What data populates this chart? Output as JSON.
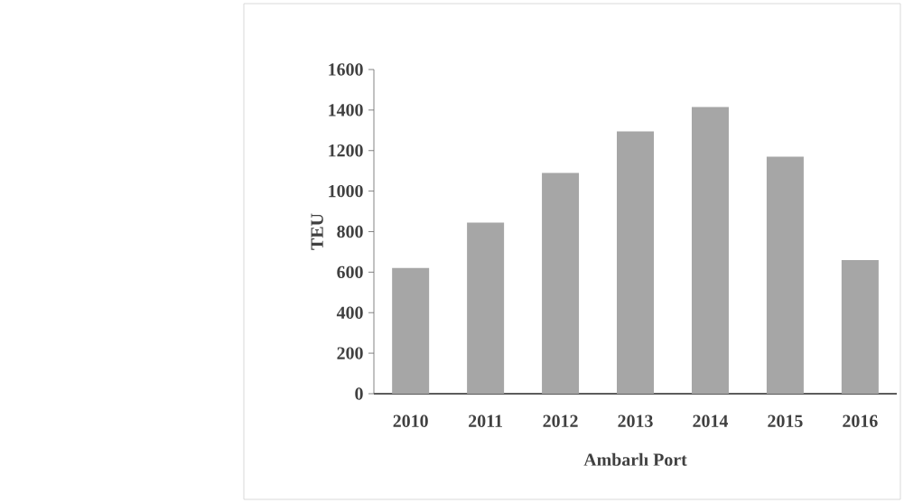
{
  "chart_data": {
    "type": "bar",
    "xlabel": "Ambarlı Port",
    "ylabel": "TEU",
    "categories": [
      "2010",
      "2011",
      "2012",
      "2013",
      "2014",
      "2015",
      "2016"
    ],
    "values": [
      620,
      845,
      1090,
      1295,
      1415,
      1170,
      660
    ],
    "color": "#a6a6a6",
    "ylim": [
      0,
      1600
    ],
    "yticks": [
      0,
      200,
      400,
      600,
      800,
      1000,
      1200,
      1400,
      1600
    ],
    "grid": false
  }
}
